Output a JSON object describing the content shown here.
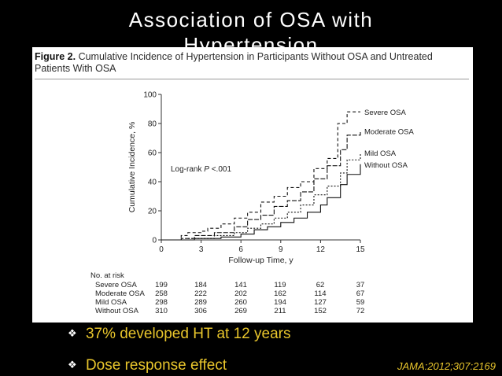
{
  "slide": {
    "title_line1": "Association of OSA with",
    "title_line2": "Hypertension",
    "bullets": [
      "37% developed HT at 12 years",
      "Dose response effect"
    ],
    "citation": "JAMA:2012;307:2169",
    "accent_color": "#e9c62c"
  },
  "figure": {
    "label": "Figure 2.",
    "caption": "Cumulative Incidence of Hypertension in Participants Without OSA and Untreated Patients With OSA",
    "annotation_text": "Log-rank ",
    "annotation_p": "P",
    "annotation_value": " <.001"
  },
  "chart_data": {
    "type": "line",
    "step": true,
    "xlabel": "Follow-up Time, y",
    "ylabel": "Cumulative Incidence, %",
    "xlim": [
      0,
      15
    ],
    "ylim": [
      0,
      100
    ],
    "xticks": [
      0,
      3,
      6,
      9,
      12,
      15
    ],
    "yticks": [
      0,
      20,
      40,
      60,
      80,
      100
    ],
    "series": [
      {
        "name": "Severe OSA",
        "dash": "4,3",
        "points": [
          [
            0,
            0
          ],
          [
            1.5,
            3
          ],
          [
            2,
            5
          ],
          [
            3,
            6
          ],
          [
            3.5,
            8
          ],
          [
            4.5,
            11
          ],
          [
            5.5,
            15
          ],
          [
            6.5,
            19
          ],
          [
            7.5,
            26
          ],
          [
            8.5,
            30
          ],
          [
            9.5,
            36
          ],
          [
            10.5,
            40
          ],
          [
            11.5,
            49
          ],
          [
            12.5,
            56
          ],
          [
            13.3,
            80
          ],
          [
            14,
            88
          ],
          [
            15,
            88
          ]
        ]
      },
      {
        "name": "Moderate OSA",
        "dash": "6,2",
        "points": [
          [
            0,
            0
          ],
          [
            1.5,
            1
          ],
          [
            2.5,
            3
          ],
          [
            4,
            5
          ],
          [
            5.5,
            9
          ],
          [
            6.5,
            14
          ],
          [
            7.5,
            17
          ],
          [
            8.5,
            23
          ],
          [
            9.5,
            27
          ],
          [
            10.5,
            33
          ],
          [
            11.5,
            42
          ],
          [
            12.5,
            51
          ],
          [
            13.5,
            62
          ],
          [
            14,
            72
          ],
          [
            15,
            75
          ]
        ]
      },
      {
        "name": "Mild OSA",
        "dash": "2,2",
        "points": [
          [
            0,
            0
          ],
          [
            2,
            1
          ],
          [
            4,
            3
          ],
          [
            5.5,
            5
          ],
          [
            6.5,
            8
          ],
          [
            7.5,
            11
          ],
          [
            8.5,
            15
          ],
          [
            9.5,
            19
          ],
          [
            10.5,
            24
          ],
          [
            11.5,
            31
          ],
          [
            12.5,
            37
          ],
          [
            13.5,
            46
          ],
          [
            14,
            55
          ],
          [
            15,
            60
          ]
        ]
      },
      {
        "name": "Without OSA",
        "dash": "",
        "points": [
          [
            0,
            0
          ],
          [
            2.5,
            1
          ],
          [
            4.5,
            2
          ],
          [
            6,
            4
          ],
          [
            7,
            7
          ],
          [
            8,
            9
          ],
          [
            9,
            12
          ],
          [
            10,
            15
          ],
          [
            11,
            19
          ],
          [
            12,
            24
          ],
          [
            12.5,
            29
          ],
          [
            13.5,
            38
          ],
          [
            14,
            45
          ],
          [
            15,
            52
          ]
        ]
      }
    ],
    "risk_table": {
      "header": "No. at risk",
      "rows": [
        {
          "label": "Severe OSA",
          "values": [
            "199",
            "184",
            "141",
            "119",
            "62",
            "37"
          ]
        },
        {
          "label": "Moderate OSA",
          "values": [
            "258",
            "222",
            "202",
            "162",
            "114",
            "67"
          ]
        },
        {
          "label": "Mild OSA",
          "values": [
            "298",
            "289",
            "260",
            "194",
            "127",
            "59"
          ]
        },
        {
          "label": "Without OSA",
          "values": [
            "310",
            "306",
            "269",
            "211",
            "152",
            "72"
          ]
        }
      ]
    }
  }
}
